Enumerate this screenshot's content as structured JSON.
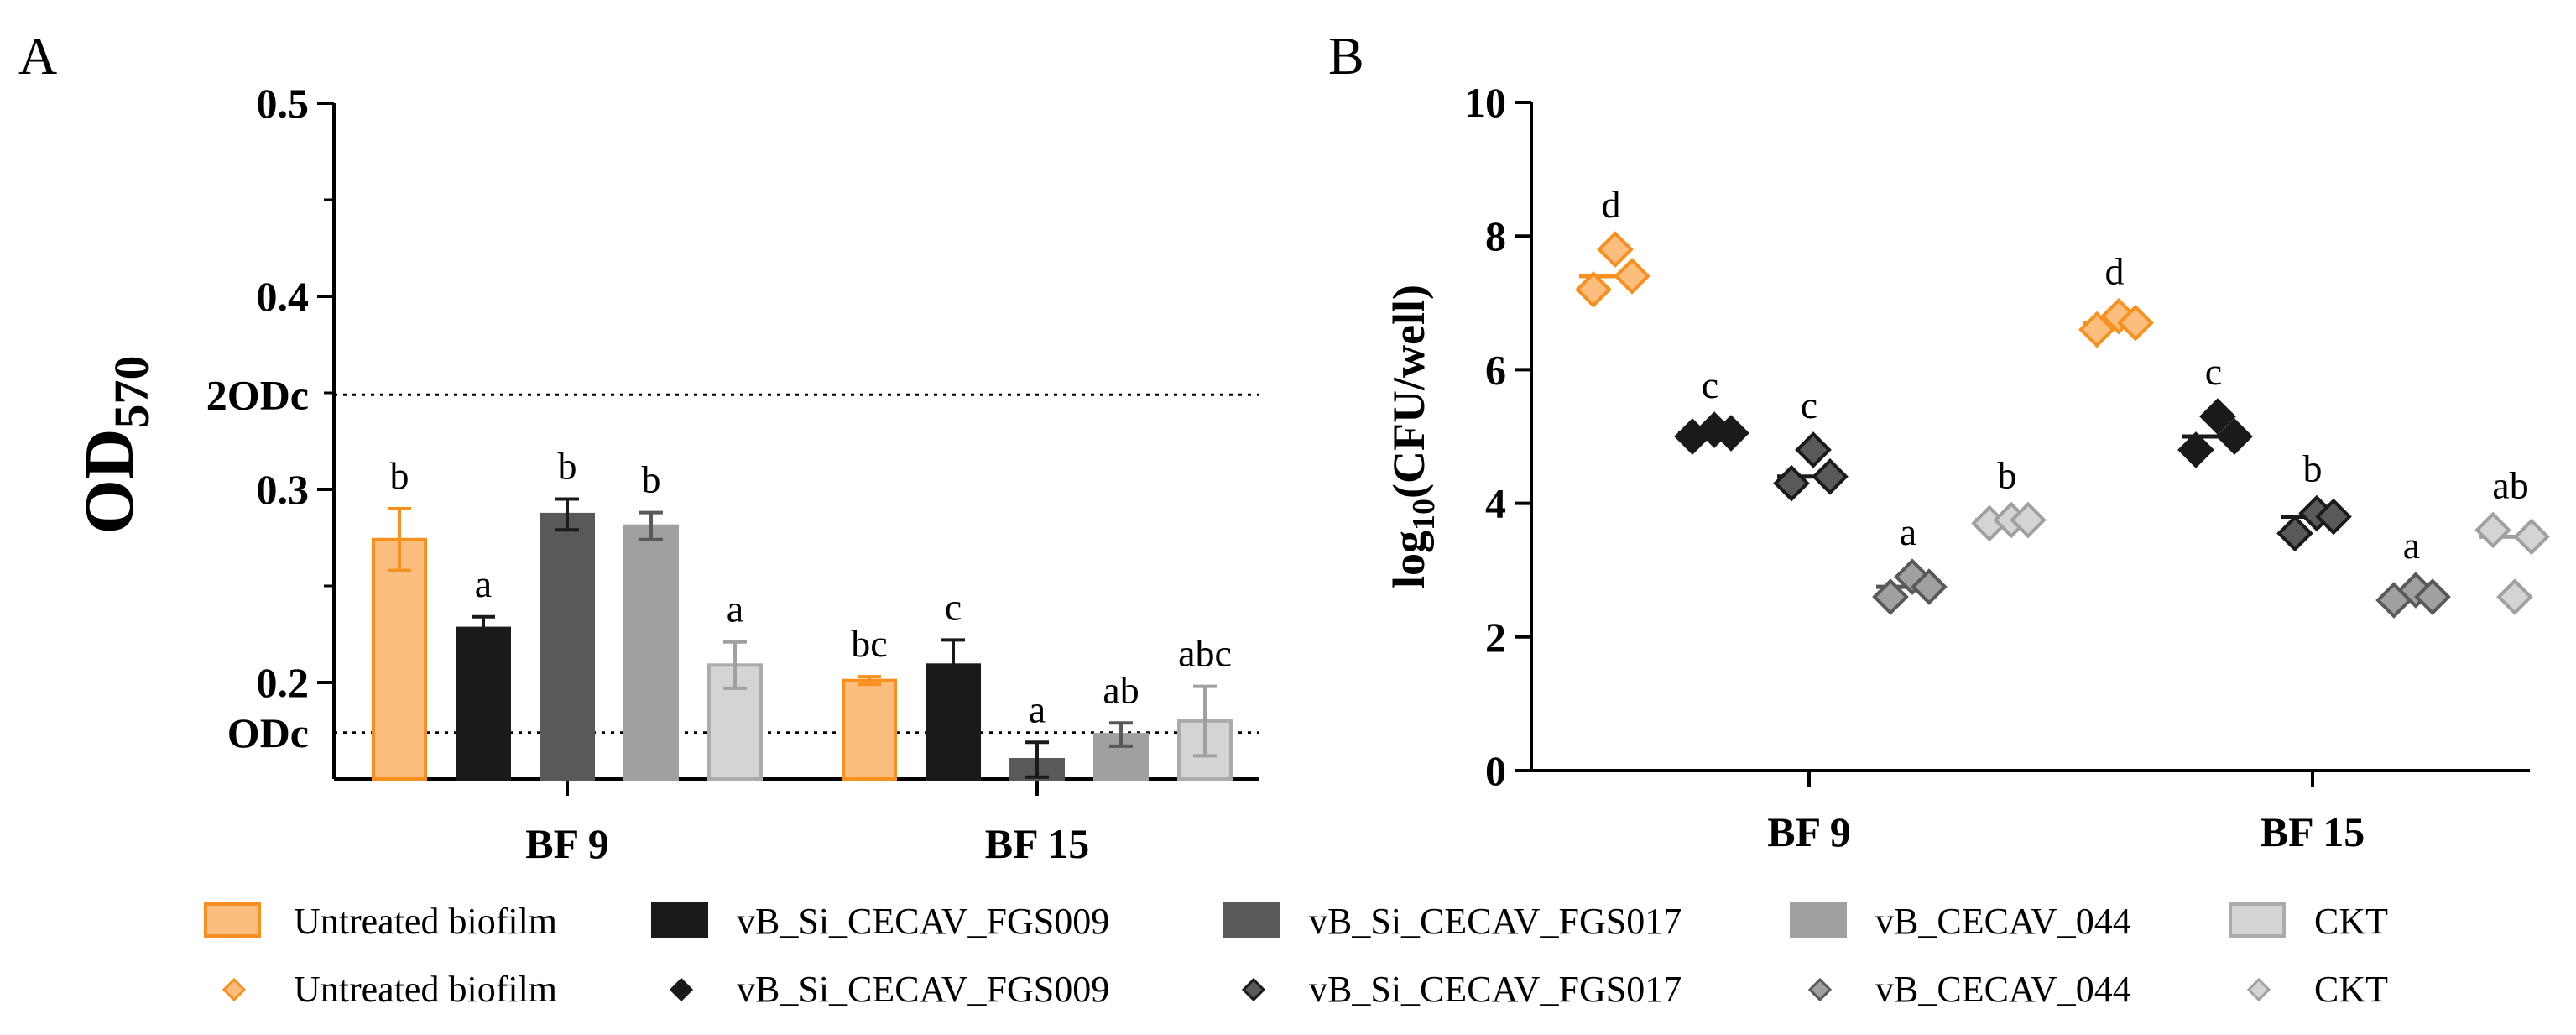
{
  "colors": {
    "untreated": "#F7901E",
    "untreated_fill": "#FCBE7F",
    "fgs009": "#1A1A1A",
    "fgs017": "#595959",
    "cecav044": "#A0A0A0",
    "ckt": "#D4D4D4",
    "ckt_stroke": "#ABABAB"
  },
  "chart_data": [
    {
      "panel": "A",
      "type": "bar",
      "ylabel": "OD",
      "ylabel_sub": "570",
      "ylim": [
        0.15,
        0.5
      ],
      "yticks": [
        "0.5",
        "0.4",
        "0.3",
        "0.2"
      ],
      "ytick_values": [
        0.5,
        0.4,
        0.3,
        0.2
      ],
      "categories": [
        "BF 9",
        "BF 15"
      ],
      "series": [
        {
          "name": "Untreated biofilm",
          "values": [
            0.274,
            0.201
          ],
          "errors": [
            0.016,
            0.002
          ],
          "letters": [
            "b",
            "bc"
          ]
        },
        {
          "name": "vB_Si_CECAV_FGS009",
          "values": [
            0.228,
            0.209
          ],
          "errors": [
            0.006,
            0.013
          ],
          "letters": [
            "a",
            "c"
          ]
        },
        {
          "name": "vB_Si_CECAV_FGS017",
          "values": [
            0.287,
            0.16
          ],
          "errors": [
            0.008,
            0.009
          ],
          "letters": [
            "b",
            "a"
          ]
        },
        {
          "name": "vB_CECAV_044",
          "values": [
            0.281,
            0.173
          ],
          "errors": [
            0.007,
            0.006
          ],
          "letters": [
            "b",
            "ab"
          ]
        },
        {
          "name": "CKT",
          "values": [
            0.209,
            0.18
          ],
          "errors": [
            0.012,
            0.018
          ],
          "letters": [
            "a",
            "abc"
          ]
        }
      ],
      "reference_lines": [
        {
          "label": "2ODc",
          "value": 0.349
        },
        {
          "label": "ODc",
          "value": 0.174
        }
      ]
    },
    {
      "panel": "B",
      "type": "scatter",
      "ylabel": "log",
      "ylabel_sub": "10",
      "ylabel_rest": "(CFU/well)",
      "ylim": [
        0,
        10
      ],
      "yticks": [
        "10",
        "8",
        "6",
        "4",
        "2",
        "0"
      ],
      "ytick_values": [
        10,
        8,
        6,
        4,
        2,
        0
      ],
      "categories": [
        "BF 9",
        "BF 15"
      ],
      "series": [
        {
          "name": "Untreated biofilm",
          "points": [
            [
              7.2,
              7.8,
              7.4
            ],
            [
              6.6,
              6.8,
              6.7
            ]
          ],
          "medians": [
            7.4,
            6.7
          ],
          "letters": [
            "d",
            "d"
          ]
        },
        {
          "name": "vB_Si_CECAV_FGS009",
          "points": [
            [
              5.0,
              5.1,
              5.05
            ],
            [
              4.8,
              5.3,
              5.0
            ]
          ],
          "medians": [
            5.05,
            5.0
          ],
          "letters": [
            "c",
            "c"
          ]
        },
        {
          "name": "vB_Si_CECAV_FGS017",
          "points": [
            [
              4.3,
              4.8,
              4.4
            ],
            [
              3.55,
              3.85,
              3.8
            ]
          ],
          "medians": [
            4.4,
            3.8
          ],
          "letters": [
            "c",
            "b"
          ]
        },
        {
          "name": "vB_CECAV_044",
          "points": [
            [
              2.6,
              2.9,
              2.75
            ],
            [
              2.55,
              2.7,
              2.6
            ]
          ],
          "medians": [
            2.75,
            2.6
          ],
          "letters": [
            "a",
            "a"
          ]
        },
        {
          "name": "CKT",
          "points": [
            [
              3.7,
              3.75,
              3.75
            ],
            [
              3.6,
              2.6,
              3.5
            ]
          ],
          "medians": [
            3.75,
            3.5
          ],
          "letters": [
            "b",
            "ab"
          ]
        }
      ]
    }
  ],
  "panel_labels": {
    "a": "A",
    "b": "B"
  },
  "legend": {
    "bars": [
      "Untreated biofilm",
      "vB_Si_CECAV_FGS009",
      "vB_Si_CECAV_FGS017",
      "vB_CECAV_044",
      "CKT"
    ],
    "markers": [
      "Untreated biofilm",
      "vB_Si_CECAV_FGS009",
      "vB_Si_CECAV_FGS017",
      "vB_CECAV_044",
      "CKT"
    ]
  }
}
